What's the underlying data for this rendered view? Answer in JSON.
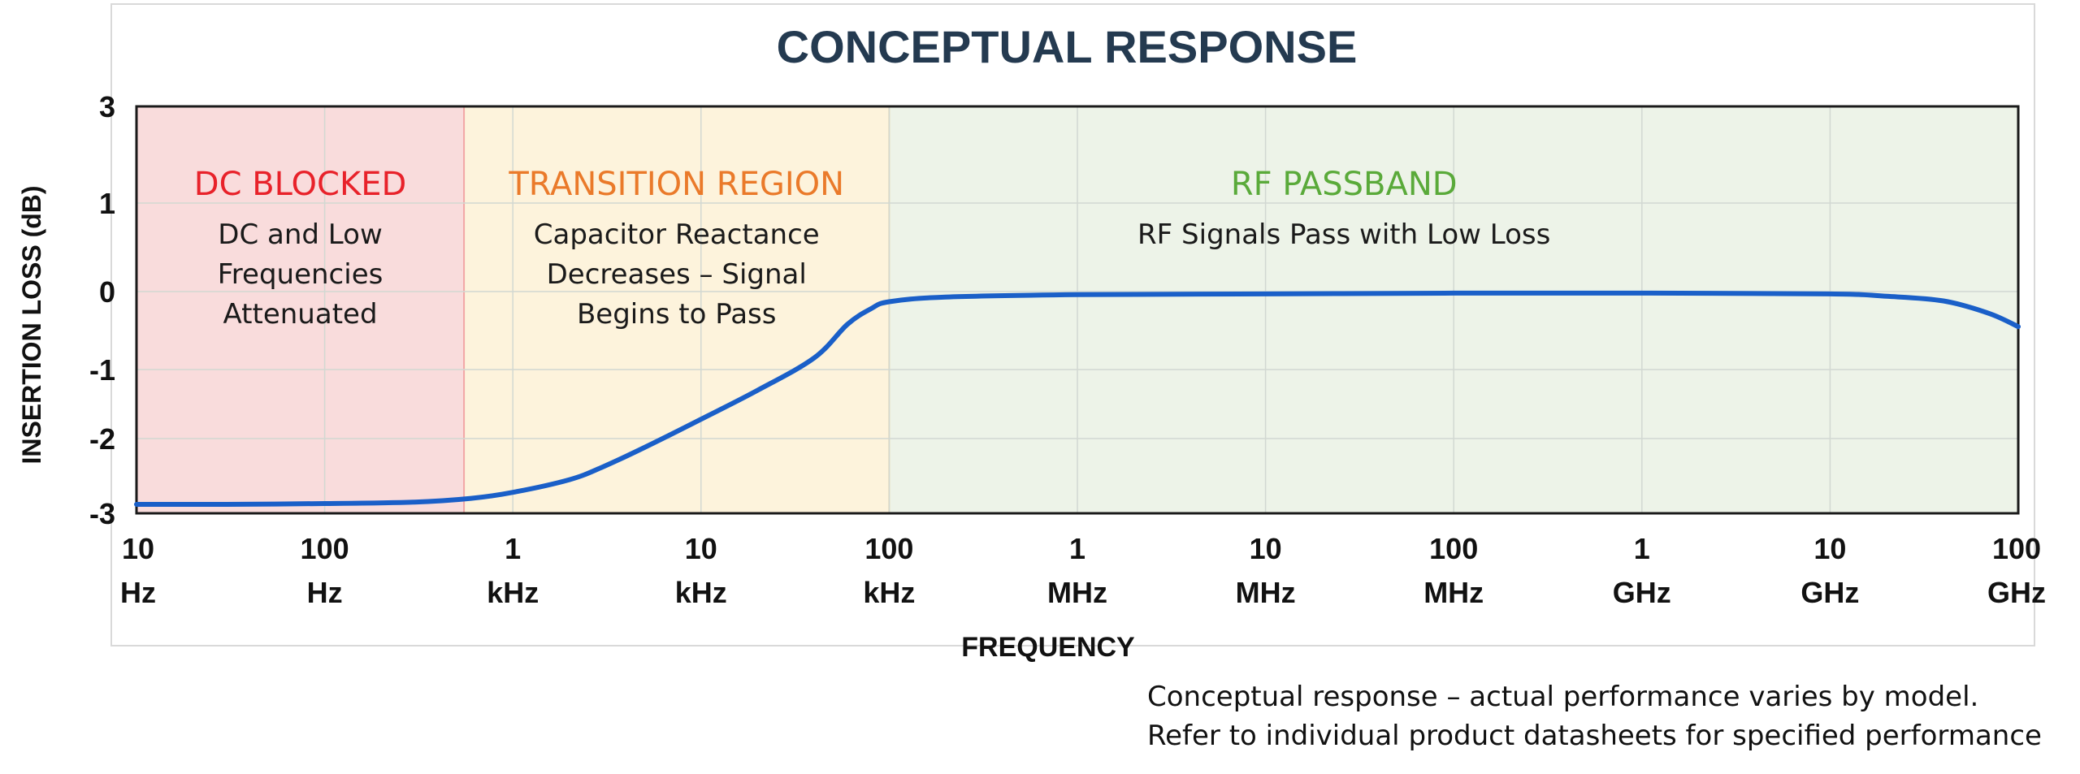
{
  "chart_data": {
    "type": "line",
    "title": "CONCEPTUAL RESPONSE",
    "xlabel": "FREQUENCY",
    "ylabel": "INSERTION LOSS (dB)",
    "x_scale": "log",
    "xlim_hz": [
      10,
      100000000000
    ],
    "ylim": [
      -3,
      3
    ],
    "y_ticks": [
      3,
      1,
      0,
      -1,
      -2,
      -3
    ],
    "x_ticks": [
      {
        "value": 10,
        "line1": "10",
        "line2": "Hz"
      },
      {
        "value": 100,
        "line1": "100",
        "line2": "Hz"
      },
      {
        "value": 1000,
        "line1": "1",
        "line2": "kHz"
      },
      {
        "value": 10000,
        "line1": "10",
        "line2": "kHz"
      },
      {
        "value": 100000,
        "line1": "100",
        "line2": "kHz"
      },
      {
        "value": 1000000,
        "line1": "1",
        "line2": "MHz"
      },
      {
        "value": 10000000,
        "line1": "10",
        "line2": "MHz"
      },
      {
        "value": 100000000,
        "line1": "100",
        "line2": "MHz"
      },
      {
        "value": 1000000000,
        "line1": "1",
        "line2": "GHz"
      },
      {
        "value": 10000000000,
        "line1": "10",
        "line2": "GHz"
      },
      {
        "value": 100000000000,
        "line1": "100",
        "line2": "GHz"
      }
    ],
    "regions": [
      {
        "from": 10,
        "to": 550,
        "color": "#f9dcdc",
        "label": "DC BLOCKED",
        "label_color": "#e8222a",
        "desc": [
          "DC and Low",
          "Frequencies",
          "Attenuated"
        ]
      },
      {
        "from": 550,
        "to": 100000,
        "color": "#fdf3dc",
        "label": "TRANSITION REGION",
        "label_color": "#ea7a2a",
        "desc": [
          "Capacitor Reactance",
          "Decreases – Signal",
          "Begins to Pass"
        ]
      },
      {
        "from": 100000,
        "to": 100000000000,
        "color": "#edf3e8",
        "label": "RF PASSBAND",
        "label_color": "#5aaa3a",
        "desc": [
          "RF Signals Pass with Low Loss"
        ]
      }
    ],
    "series": [
      {
        "color": "#1a5fc8",
        "points": [
          [
            10,
            -2.88
          ],
          [
            30,
            -2.88
          ],
          [
            100,
            -2.87
          ],
          [
            300,
            -2.85
          ],
          [
            600,
            -2.8
          ],
          [
            1000,
            -2.72
          ],
          [
            2000,
            -2.55
          ],
          [
            3000,
            -2.38
          ],
          [
            5000,
            -2.12
          ],
          [
            10000,
            -1.72
          ],
          [
            20000,
            -1.3
          ],
          [
            40000,
            -0.85
          ],
          [
            60000,
            -0.42
          ],
          [
            80000,
            -0.22
          ],
          [
            100000,
            -0.13
          ],
          [
            200000,
            -0.07
          ],
          [
            1000000,
            -0.04
          ],
          [
            10000000,
            -0.03
          ],
          [
            100000000,
            -0.02
          ],
          [
            1000000000,
            -0.02
          ],
          [
            10000000000,
            -0.03
          ],
          [
            20000000000,
            -0.06
          ],
          [
            40000000000,
            -0.12
          ],
          [
            70000000000,
            -0.28
          ],
          [
            100000000000,
            -0.45
          ]
        ]
      }
    ],
    "grid": true
  },
  "footnote": {
    "line1": "Conceptual response – actual performance varies by model.",
    "line2": "Refer to individual product datasheets for specified performance"
  }
}
